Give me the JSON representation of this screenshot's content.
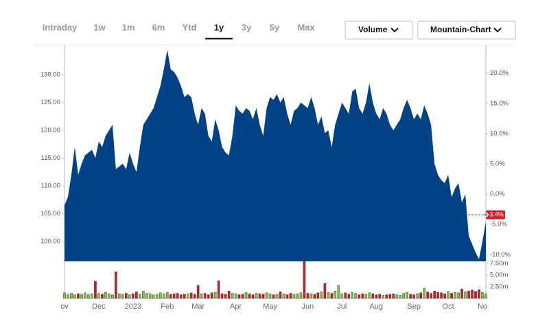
{
  "tabs": {
    "items": [
      "Intraday",
      "1w",
      "1m",
      "6m",
      "Ytd",
      "1y",
      "3y",
      "5y",
      "Max"
    ],
    "selected": 5
  },
  "dropdowns": [
    "Volume",
    "Mountain-Chart"
  ],
  "chart_data": {
    "type": "area",
    "color": "#004287",
    "categories": [
      "ov",
      null,
      null,
      null,
      null,
      null,
      null,
      null,
      null,
      null,
      "Dec",
      null,
      null,
      null,
      null,
      null,
      null,
      null,
      null,
      null,
      "2023",
      null,
      null,
      null,
      null,
      null,
      null,
      null,
      null,
      null,
      "Feb",
      null,
      null,
      null,
      null,
      null,
      null,
      null,
      null,
      "Mar",
      null,
      null,
      null,
      null,
      null,
      null,
      null,
      null,
      null,
      null,
      "Apr",
      null,
      null,
      null,
      null,
      null,
      null,
      null,
      null,
      null,
      "May",
      null,
      null,
      null,
      null,
      null,
      null,
      null,
      null,
      null,
      null,
      "Jun",
      null,
      null,
      null,
      null,
      null,
      null,
      null,
      null,
      null,
      "Jul",
      null,
      null,
      null,
      null,
      null,
      null,
      null,
      null,
      null,
      "Aug",
      null,
      null,
      null,
      null,
      null,
      null,
      null,
      null,
      null,
      null,
      "Sep",
      null,
      null,
      null,
      null,
      null,
      null,
      null,
      null,
      null,
      "Oct",
      null,
      null,
      null,
      null,
      null,
      null,
      null,
      null,
      null,
      "No",
      null
    ],
    "values": [
      106.5,
      108,
      112,
      117,
      112,
      114,
      115.5,
      116,
      116.5,
      115,
      118,
      117,
      119,
      120,
      121,
      113,
      113.5,
      114,
      113,
      116,
      114,
      112.5,
      117,
      121,
      122,
      123,
      124,
      126,
      128,
      131,
      134.5,
      131,
      130.5,
      129.5,
      128,
      126,
      126.5,
      126,
      123,
      121,
      124,
      123,
      119,
      118,
      122,
      120,
      117,
      116,
      115.5,
      119,
      124.5,
      123.5,
      123,
      124,
      123.5,
      122,
      124,
      121,
      119,
      124,
      126,
      125.5,
      126.5,
      125,
      126,
      123,
      121,
      123.5,
      124,
      125,
      124.5,
      124,
      126,
      124,
      121,
      122.5,
      119.5,
      120,
      117,
      121,
      123,
      125,
      124,
      123,
      127,
      127.5,
      124,
      123,
      125,
      128.5,
      125,
      123,
      122,
      124,
      123,
      121,
      120,
      121,
      122,
      124,
      125.5,
      124,
      122,
      123,
      122,
      124.5,
      123,
      121,
      114,
      112,
      111,
      110.5,
      112,
      108,
      109.5,
      110.5,
      107,
      108.5,
      101,
      99.5,
      98,
      96.8,
      100,
      103.5
    ],
    "ylim": [
      96.4,
      135.2
    ],
    "yticks": [
      {
        "value": 100,
        "label": "100.00"
      },
      {
        "value": 105,
        "label": "105.00"
      },
      {
        "value": 110,
        "label": "110.00"
      },
      {
        "value": 115,
        "label": "115.00"
      },
      {
        "value": 120,
        "label": "120.00"
      },
      {
        "value": 125,
        "label": "125.00"
      },
      {
        "value": 130,
        "label": "130.00"
      }
    ],
    "y2lim": [
      -11.1,
      24.5
    ],
    "y2ticks": [
      {
        "value": -10,
        "label": "-10.0%"
      },
      {
        "value": -5,
        "label": "-5.0%"
      },
      {
        "value": 0,
        "label": "0.0%"
      },
      {
        "value": 5,
        "label": "5.0%"
      },
      {
        "value": 10,
        "label": "10.0%"
      },
      {
        "value": 15,
        "label": "15.0%"
      },
      {
        "value": 20,
        "label": "20.0%"
      }
    ],
    "last_change": {
      "value": -3.4,
      "label": "-3.4%",
      "color": "#d8202a"
    },
    "volume": {
      "up_color": "#7cc142",
      "down_color": "#c8202a",
      "values": [
        1.2,
        0.9,
        1.1,
        0.8,
        1.0,
        0.9,
        1.2,
        0.8,
        1.0,
        3.7,
        1.1,
        0.9,
        1.3,
        1.0,
        0.8,
        5.7,
        1.0,
        0.9,
        1.1,
        0.8,
        1.0,
        1.4,
        0.9,
        1.6,
        1.1,
        1.0,
        0.8,
        0.9,
        1.2,
        1.0,
        1.3,
        0.9,
        1.0,
        1.1,
        0.8,
        0.9,
        1.0,
        1.2,
        0.9,
        2.8,
        1.0,
        1.1,
        0.8,
        1.2,
        1.3,
        3.8,
        1.0,
        0.9,
        1.6,
        1.1,
        1.0,
        0.8,
        0.9,
        1.3,
        1.0,
        0.8,
        1.1,
        1.0,
        0.9,
        1.2,
        1.0,
        0.8,
        0.9,
        1.4,
        1.0,
        0.8,
        1.1,
        0.9,
        1.0,
        1.2,
        7.9,
        1.1,
        1.0,
        0.9,
        1.2,
        1.4,
        3.2,
        1.3,
        1.1,
        1.6,
        2.8,
        1.0,
        1.2,
        0.9,
        1.3,
        1.1,
        0.8,
        1.0,
        0.9,
        1.2,
        1.0,
        0.8,
        0.9,
        0.7,
        0.8,
        0.9,
        1.0,
        0.8,
        0.7,
        1.1,
        1.3,
        0.9,
        0.8,
        1.0,
        1.2,
        2.2,
        1.4,
        1.1,
        1.6,
        1.3,
        1.2,
        1.0,
        1.5,
        1.1,
        1.3,
        1.2,
        2.0,
        1.4,
        1.6,
        1.8,
        1.5,
        1.9,
        1.3,
        1.0
      ],
      "ylim": [
        0,
        7.94
      ],
      "yticks": [
        {
          "value": 2.5,
          "label": "2.50m"
        },
        {
          "value": 5,
          "label": "5.00m"
        },
        {
          "value": 7.5,
          "label": "7.50m"
        }
      ]
    }
  }
}
